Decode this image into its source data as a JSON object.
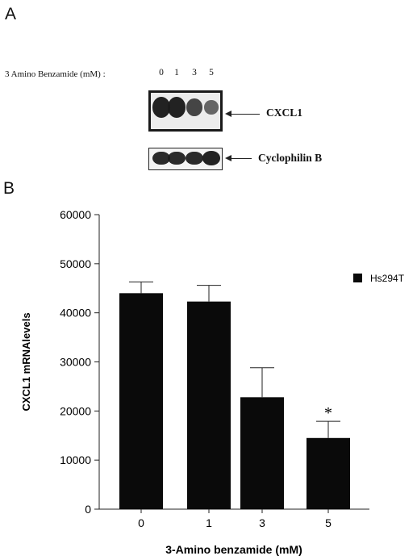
{
  "panels": {
    "a": "A",
    "b": "B"
  },
  "blot": {
    "treatment_label": "3 Amino Benzamide (mM) :",
    "lanes": [
      "0",
      "1",
      "3",
      "5"
    ],
    "bands": [
      {
        "label": "CXCL1",
        "intensities": [
          0.95,
          0.95,
          0.7,
          0.45
        ]
      },
      {
        "label": "Cyclophilin B",
        "intensities": [
          0.9,
          0.9,
          0.9,
          0.95
        ]
      }
    ]
  },
  "chart_data": {
    "type": "bar",
    "categories": [
      "0",
      "1",
      "3",
      "5"
    ],
    "series": [
      {
        "name": "Hs294T",
        "values": [
          44000,
          42300,
          22800,
          14500
        ],
        "error": [
          2300,
          3300,
          6000,
          3400
        ]
      }
    ],
    "annotations": [
      {
        "category": "5",
        "text": "*"
      }
    ],
    "xlabel": "3-Amino benzamide  (mM)",
    "ylabel": "CXCL1 mRNAlevels",
    "ylim": [
      0,
      60000
    ],
    "yticks": [
      "0",
      "10000",
      "20000",
      "30000",
      "40000",
      "50000",
      "60000"
    ],
    "grid": false,
    "legend_position": "top-right",
    "bar_color": "#0a0a0a"
  }
}
